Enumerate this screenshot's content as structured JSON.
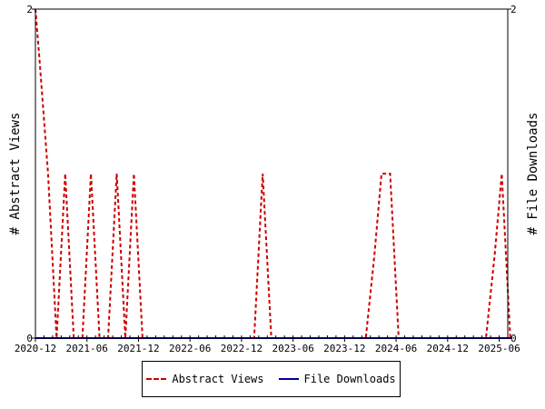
{
  "chart_data": {
    "type": "line",
    "x_ticks": [
      "2020-12",
      "2021-06",
      "2021-12",
      "2022-06",
      "2022-12",
      "2023-06",
      "2023-12",
      "2024-06",
      "2024-12",
      "2025-06"
    ],
    "x_range": [
      "2020-12",
      "2025-07"
    ],
    "y_left": {
      "label": "# Abstract Views",
      "ticks": [
        0,
        2
      ],
      "range": [
        0,
        2
      ]
    },
    "y_right": {
      "label": "# File Downloads",
      "ticks": [
        0,
        2
      ],
      "range": [
        0,
        2
      ]
    },
    "grid": false,
    "legend_position": "bottom",
    "series": [
      {
        "name": "Abstract Views",
        "axis": "left",
        "color": "#cc0000",
        "dash": "dashed",
        "points": [
          [
            "2020-12-01",
            2
          ],
          [
            "2020-12-15",
            1.7
          ],
          [
            "2021-01-15",
            1
          ],
          [
            "2021-02-15",
            0
          ],
          [
            "2021-03-15",
            1
          ],
          [
            "2021-04-15",
            0
          ],
          [
            "2021-05-15",
            0
          ],
          [
            "2021-06-15",
            1
          ],
          [
            "2021-07-15",
            0
          ],
          [
            "2021-08-15",
            0
          ],
          [
            "2021-09-15",
            1
          ],
          [
            "2021-10-15",
            0
          ],
          [
            "2021-11-15",
            1
          ],
          [
            "2021-12-15",
            0
          ],
          [
            "2022-12-15",
            0
          ],
          [
            "2023-01-15",
            0
          ],
          [
            "2023-02-15",
            1
          ],
          [
            "2023-03-15",
            0
          ],
          [
            "2024-02-15",
            0
          ],
          [
            "2024-03-15",
            0.5
          ],
          [
            "2024-04-10",
            1
          ],
          [
            "2024-05-10",
            1
          ],
          [
            "2024-06-10",
            0
          ],
          [
            "2025-04-15",
            0
          ],
          [
            "2025-05-15",
            0.5
          ],
          [
            "2025-06-10",
            1
          ],
          [
            "2025-07-10",
            0
          ]
        ]
      },
      {
        "name": "File Downloads",
        "axis": "right",
        "color": "#000099",
        "dash": "solid",
        "points": [
          [
            "2020-12-01",
            0
          ],
          [
            "2025-07-15",
            0
          ]
        ]
      }
    ]
  }
}
